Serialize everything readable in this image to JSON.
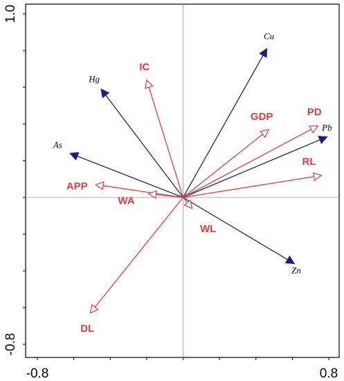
{
  "chart_data": {
    "type": "scatter",
    "subtype": "rda-biplot",
    "title": "",
    "xlabel": "",
    "ylabel": "",
    "xlim": [
      -0.8,
      0.8
    ],
    "ylim": [
      -0.8,
      1.0
    ],
    "x_tick_labels": [
      "-0.8",
      "0.8"
    ],
    "y_tick_labels": [
      "1.0",
      "-0.8"
    ],
    "grid": false,
    "zero_lines": true,
    "colors": {
      "species": "#1b1e80",
      "environment": "#e8393b",
      "zero_line": "#9a9a9a",
      "frame": "#000000"
    },
    "series": [
      {
        "role": "species",
        "arrow_head": "filled",
        "vectors": [
          {
            "label": "Cu",
            "x": 0.46,
            "y": 0.81
          },
          {
            "label": "Hg",
            "x": -0.45,
            "y": 0.59
          },
          {
            "label": "As",
            "x": -0.62,
            "y": 0.24
          },
          {
            "label": "Pb",
            "x": 0.79,
            "y": 0.33
          },
          {
            "label": "Zn",
            "x": 0.61,
            "y": -0.36
          }
        ]
      },
      {
        "role": "environment",
        "arrow_head": "open",
        "vectors": [
          {
            "label": "IC",
            "x": -0.2,
            "y": 0.64
          },
          {
            "label": "GDP",
            "x": 0.47,
            "y": 0.37
          },
          {
            "label": "PD",
            "x": 0.74,
            "y": 0.39
          },
          {
            "label": "RL",
            "x": 0.76,
            "y": 0.12
          },
          {
            "label": "APP",
            "x": -0.48,
            "y": 0.07
          },
          {
            "label": "WA",
            "x": -0.19,
            "y": 0.02
          },
          {
            "label": "WL",
            "x": 0.05,
            "y": -0.06
          },
          {
            "label": "DL",
            "x": -0.51,
            "y": -0.63
          }
        ]
      }
    ]
  }
}
